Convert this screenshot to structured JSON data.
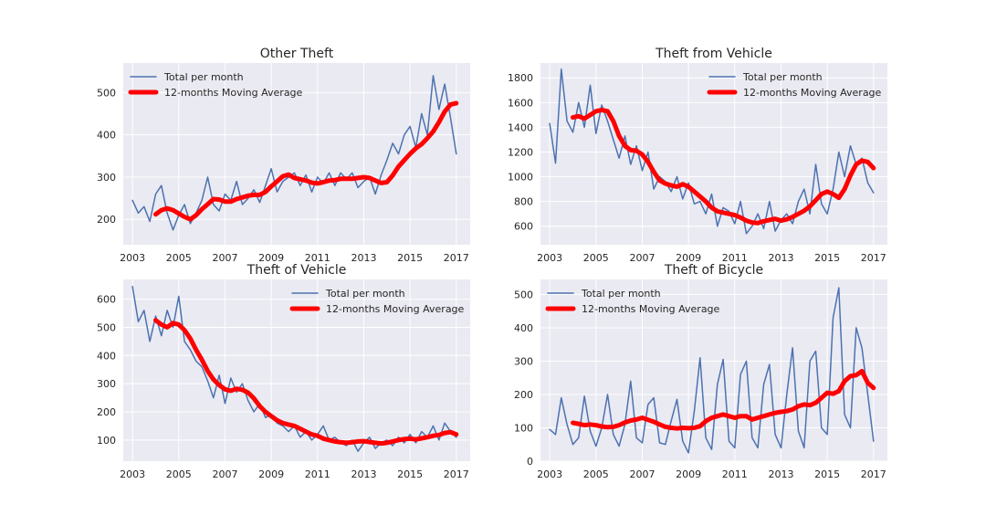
{
  "chart_data": [
    {
      "type": "line",
      "title": "Other Theft",
      "xlabel": "",
      "ylabel": "",
      "xlim": [
        2002.6,
        2017.6
      ],
      "ylim": [
        140,
        570
      ],
      "xticks": [
        2003,
        2005,
        2007,
        2009,
        2011,
        2013,
        2015,
        2017
      ],
      "yticks": [
        200,
        300,
        400,
        500
      ],
      "grid": true,
      "legend": "top-left",
      "series": [
        {
          "name": "Total per month",
          "color": "#4c72b0",
          "x": [
            2003.0,
            2003.25,
            2003.5,
            2003.75,
            2004.0,
            2004.25,
            2004.5,
            2004.75,
            2005.0,
            2005.25,
            2005.5,
            2005.75,
            2006.0,
            2006.25,
            2006.5,
            2006.75,
            2007.0,
            2007.25,
            2007.5,
            2007.75,
            2008.0,
            2008.25,
            2008.5,
            2008.75,
            2009.0,
            2009.25,
            2009.5,
            2009.75,
            2010.0,
            2010.25,
            2010.5,
            2010.75,
            2011.0,
            2011.25,
            2011.5,
            2011.75,
            2012.0,
            2012.25,
            2012.5,
            2012.75,
            2013.0,
            2013.25,
            2013.5,
            2013.75,
            2014.0,
            2014.25,
            2014.5,
            2014.75,
            2015.0,
            2015.25,
            2015.5,
            2015.75,
            2016.0,
            2016.25,
            2016.5,
            2016.75,
            2017.0
          ],
          "y": [
            245,
            215,
            230,
            195,
            260,
            280,
            215,
            175,
            210,
            235,
            190,
            215,
            245,
            300,
            235,
            220,
            260,
            245,
            290,
            235,
            250,
            270,
            240,
            280,
            320,
            265,
            290,
            300,
            310,
            280,
            305,
            265,
            300,
            285,
            310,
            280,
            310,
            295,
            310,
            275,
            290,
            300,
            260,
            305,
            340,
            380,
            355,
            400,
            420,
            370,
            450,
            400,
            540,
            460,
            520,
            440,
            355
          ]
        },
        {
          "name": "12-months Moving Average",
          "color": "#ff0000",
          "x": [
            2004.0,
            2004.25,
            2004.5,
            2004.75,
            2005.0,
            2005.25,
            2005.5,
            2005.75,
            2006.0,
            2006.25,
            2006.5,
            2006.75,
            2007.0,
            2007.25,
            2007.5,
            2007.75,
            2008.0,
            2008.25,
            2008.5,
            2008.75,
            2009.0,
            2009.25,
            2009.5,
            2009.75,
            2010.0,
            2010.25,
            2010.5,
            2010.75,
            2011.0,
            2011.25,
            2011.5,
            2011.75,
            2012.0,
            2012.25,
            2012.5,
            2012.75,
            2013.0,
            2013.25,
            2013.5,
            2013.75,
            2014.0,
            2014.25,
            2014.5,
            2014.75,
            2015.0,
            2015.25,
            2015.5,
            2015.75,
            2016.0,
            2016.25,
            2016.5,
            2016.75,
            2017.0
          ],
          "y": [
            212,
            222,
            226,
            222,
            214,
            206,
            200,
            210,
            224,
            236,
            248,
            247,
            242,
            242,
            248,
            252,
            256,
            258,
            258,
            265,
            278,
            290,
            302,
            306,
            298,
            295,
            292,
            287,
            285,
            288,
            292,
            293,
            296,
            296,
            296,
            298,
            300,
            298,
            292,
            286,
            288,
            304,
            325,
            340,
            355,
            368,
            378,
            392,
            408,
            430,
            455,
            472,
            475
          ]
        }
      ]
    },
    {
      "type": "line",
      "title": "Theft from Vehicle",
      "xlabel": "",
      "ylabel": "",
      "xlim": [
        2002.6,
        2017.6
      ],
      "ylim": [
        450,
        1920
      ],
      "xticks": [
        2003,
        2005,
        2007,
        2009,
        2011,
        2013,
        2015,
        2017
      ],
      "yticks": [
        600,
        800,
        1000,
        1200,
        1400,
        1600,
        1800
      ],
      "grid": true,
      "legend": "top-right",
      "series": [
        {
          "name": "Total per month",
          "color": "#4c72b0",
          "x": [
            2003.0,
            2003.25,
            2003.5,
            2003.75,
            2004.0,
            2004.25,
            2004.5,
            2004.75,
            2005.0,
            2005.25,
            2005.5,
            2005.75,
            2006.0,
            2006.25,
            2006.5,
            2006.75,
            2007.0,
            2007.25,
            2007.5,
            2007.75,
            2008.0,
            2008.25,
            2008.5,
            2008.75,
            2009.0,
            2009.25,
            2009.5,
            2009.75,
            2010.0,
            2010.25,
            2010.5,
            2010.75,
            2011.0,
            2011.25,
            2011.5,
            2011.75,
            2012.0,
            2012.25,
            2012.5,
            2012.75,
            2013.0,
            2013.25,
            2013.5,
            2013.75,
            2014.0,
            2014.25,
            2014.5,
            2014.75,
            2015.0,
            2015.25,
            2015.5,
            2015.75,
            2016.0,
            2016.25,
            2016.5,
            2016.75,
            2017.0
          ],
          "y": [
            1430,
            1110,
            1870,
            1450,
            1360,
            1600,
            1400,
            1740,
            1350,
            1580,
            1450,
            1300,
            1150,
            1330,
            1100,
            1250,
            1050,
            1200,
            900,
            1000,
            960,
            880,
            1000,
            820,
            950,
            780,
            800,
            700,
            860,
            600,
            750,
            720,
            620,
            800,
            540,
            600,
            700,
            580,
            800,
            560,
            650,
            700,
            620,
            800,
            900,
            700,
            1100,
            780,
            700,
            900,
            1200,
            1000,
            1250,
            1100,
            1150,
            950,
            870
          ]
        },
        {
          "name": "12-months Moving Average",
          "color": "#ff0000",
          "x": [
            2004.0,
            2004.25,
            2004.5,
            2004.75,
            2005.0,
            2005.25,
            2005.5,
            2005.75,
            2006.0,
            2006.25,
            2006.5,
            2006.75,
            2007.0,
            2007.25,
            2007.5,
            2007.75,
            2008.0,
            2008.25,
            2008.5,
            2008.75,
            2009.0,
            2009.25,
            2009.5,
            2009.75,
            2010.0,
            2010.25,
            2010.5,
            2010.75,
            2011.0,
            2011.25,
            2011.5,
            2011.75,
            2012.0,
            2012.25,
            2012.5,
            2012.75,
            2013.0,
            2013.25,
            2013.5,
            2013.75,
            2014.0,
            2014.25,
            2014.5,
            2014.75,
            2015.0,
            2015.25,
            2015.5,
            2015.75,
            2016.0,
            2016.25,
            2016.5,
            2016.75,
            2017.0
          ],
          "y": [
            1480,
            1490,
            1470,
            1500,
            1530,
            1540,
            1530,
            1450,
            1330,
            1250,
            1215,
            1210,
            1180,
            1120,
            1040,
            970,
            945,
            930,
            920,
            940,
            920,
            880,
            840,
            800,
            750,
            720,
            710,
            700,
            690,
            670,
            645,
            630,
            625,
            640,
            650,
            660,
            645,
            655,
            675,
            700,
            725,
            760,
            810,
            860,
            880,
            860,
            830,
            900,
            1010,
            1100,
            1130,
            1120,
            1070
          ]
        }
      ]
    },
    {
      "type": "line",
      "title": "Theft of Vehicle",
      "xlabel": "",
      "ylabel": "",
      "xlim": [
        2002.6,
        2017.6
      ],
      "ylim": [
        25,
        670
      ],
      "xticks": [
        2003,
        2005,
        2007,
        2009,
        2011,
        2013,
        2015,
        2017
      ],
      "yticks": [
        100,
        200,
        300,
        400,
        500,
        600
      ],
      "grid": true,
      "legend": "top-right",
      "series": [
        {
          "name": "Total per month",
          "color": "#4c72b0",
          "x": [
            2003.0,
            2003.25,
            2003.5,
            2003.75,
            2004.0,
            2004.25,
            2004.5,
            2004.75,
            2005.0,
            2005.25,
            2005.5,
            2005.75,
            2006.0,
            2006.25,
            2006.5,
            2006.75,
            2007.0,
            2007.25,
            2007.5,
            2007.75,
            2008.0,
            2008.25,
            2008.5,
            2008.75,
            2009.0,
            2009.25,
            2009.5,
            2009.75,
            2010.0,
            2010.25,
            2010.5,
            2010.75,
            2011.0,
            2011.25,
            2011.5,
            2011.75,
            2012.0,
            2012.25,
            2012.5,
            2012.75,
            2013.0,
            2013.25,
            2013.5,
            2013.75,
            2014.0,
            2014.25,
            2014.5,
            2014.75,
            2015.0,
            2015.25,
            2015.5,
            2015.75,
            2016.0,
            2016.25,
            2016.5,
            2016.75,
            2017.0
          ],
          "y": [
            645,
            520,
            560,
            450,
            540,
            470,
            560,
            500,
            610,
            450,
            420,
            380,
            360,
            310,
            250,
            330,
            230,
            320,
            270,
            300,
            240,
            200,
            230,
            180,
            190,
            160,
            150,
            130,
            150,
            110,
            130,
            100,
            120,
            150,
            100,
            110,
            90,
            80,
            100,
            60,
            90,
            110,
            70,
            90,
            100,
            80,
            110,
            90,
            120,
            90,
            130,
            110,
            150,
            100,
            160,
            130,
            110
          ]
        },
        {
          "name": "12-months Moving Average",
          "color": "#ff0000",
          "x": [
            2004.0,
            2004.25,
            2004.5,
            2004.75,
            2005.0,
            2005.25,
            2005.5,
            2005.75,
            2006.0,
            2006.25,
            2006.5,
            2006.75,
            2007.0,
            2007.25,
            2007.5,
            2007.75,
            2008.0,
            2008.25,
            2008.5,
            2008.75,
            2009.0,
            2009.25,
            2009.5,
            2009.75,
            2010.0,
            2010.25,
            2010.5,
            2010.75,
            2011.0,
            2011.25,
            2011.5,
            2011.75,
            2012.0,
            2012.25,
            2012.5,
            2012.75,
            2013.0,
            2013.25,
            2013.5,
            2013.75,
            2014.0,
            2014.25,
            2014.5,
            2014.75,
            2015.0,
            2015.25,
            2015.5,
            2015.75,
            2016.0,
            2016.25,
            2016.5,
            2016.75,
            2017.0
          ],
          "y": [
            525,
            510,
            500,
            515,
            510,
            490,
            460,
            420,
            385,
            345,
            315,
            295,
            280,
            275,
            282,
            278,
            268,
            248,
            220,
            200,
            185,
            170,
            160,
            155,
            150,
            140,
            130,
            120,
            115,
            105,
            100,
            95,
            92,
            90,
            92,
            95,
            96,
            93,
            90,
            88,
            90,
            95,
            100,
            103,
            105,
            102,
            106,
            110,
            115,
            118,
            125,
            128,
            120
          ]
        }
      ]
    },
    {
      "type": "line",
      "title": "Theft of Bicycle",
      "xlabel": "",
      "ylabel": "",
      "xlim": [
        2002.6,
        2017.6
      ],
      "ylim": [
        0,
        545
      ],
      "xticks": [
        2003,
        2005,
        2007,
        2009,
        2011,
        2013,
        2015,
        2017
      ],
      "yticks": [
        0,
        100,
        200,
        300,
        400,
        500
      ],
      "grid": true,
      "legend": "top-left",
      "series": [
        {
          "name": "Total per month",
          "color": "#4c72b0",
          "x": [
            2003.0,
            2003.25,
            2003.5,
            2003.75,
            2004.0,
            2004.25,
            2004.5,
            2004.75,
            2005.0,
            2005.25,
            2005.5,
            2005.75,
            2006.0,
            2006.25,
            2006.5,
            2006.75,
            2007.0,
            2007.25,
            2007.5,
            2007.75,
            2008.0,
            2008.25,
            2008.5,
            2008.75,
            2009.0,
            2009.25,
            2009.5,
            2009.75,
            2010.0,
            2010.25,
            2010.5,
            2010.75,
            2011.0,
            2011.25,
            2011.5,
            2011.75,
            2012.0,
            2012.25,
            2012.5,
            2012.75,
            2013.0,
            2013.25,
            2013.5,
            2013.75,
            2014.0,
            2014.25,
            2014.5,
            2014.75,
            2015.0,
            2015.25,
            2015.5,
            2015.75,
            2016.0,
            2016.25,
            2016.5,
            2016.75,
            2017.0
          ],
          "y": [
            95,
            80,
            190,
            110,
            50,
            70,
            195,
            90,
            45,
            100,
            200,
            80,
            45,
            110,
            240,
            70,
            55,
            170,
            190,
            55,
            50,
            120,
            185,
            60,
            25,
            150,
            310,
            70,
            35,
            230,
            305,
            60,
            40,
            260,
            300,
            70,
            40,
            230,
            290,
            80,
            40,
            200,
            340,
            90,
            40,
            300,
            330,
            100,
            80,
            430,
            520,
            140,
            100,
            400,
            340,
            200,
            60
          ]
        },
        {
          "name": "12-months Moving Average",
          "color": "#ff0000",
          "x": [
            2004.0,
            2004.25,
            2004.5,
            2004.75,
            2005.0,
            2005.25,
            2005.5,
            2005.75,
            2006.0,
            2006.25,
            2006.5,
            2006.75,
            2007.0,
            2007.25,
            2007.5,
            2007.75,
            2008.0,
            2008.25,
            2008.5,
            2008.75,
            2009.0,
            2009.25,
            2009.5,
            2009.75,
            2010.0,
            2010.25,
            2010.5,
            2010.75,
            2011.0,
            2011.25,
            2011.5,
            2011.75,
            2012.0,
            2012.25,
            2012.5,
            2012.75,
            2013.0,
            2013.25,
            2013.5,
            2013.75,
            2014.0,
            2014.25,
            2014.5,
            2014.75,
            2015.0,
            2015.25,
            2015.5,
            2015.75,
            2016.0,
            2016.25,
            2016.5,
            2016.75,
            2017.0
          ],
          "y": [
            115,
            112,
            108,
            110,
            108,
            104,
            102,
            103,
            108,
            116,
            122,
            125,
            130,
            124,
            118,
            110,
            103,
            100,
            98,
            100,
            99,
            100,
            105,
            120,
            130,
            135,
            140,
            135,
            130,
            135,
            135,
            125,
            130,
            135,
            140,
            145,
            148,
            150,
            155,
            165,
            170,
            168,
            175,
            190,
            205,
            202,
            210,
            240,
            255,
            258,
            270,
            235,
            220
          ]
        }
      ]
    }
  ]
}
